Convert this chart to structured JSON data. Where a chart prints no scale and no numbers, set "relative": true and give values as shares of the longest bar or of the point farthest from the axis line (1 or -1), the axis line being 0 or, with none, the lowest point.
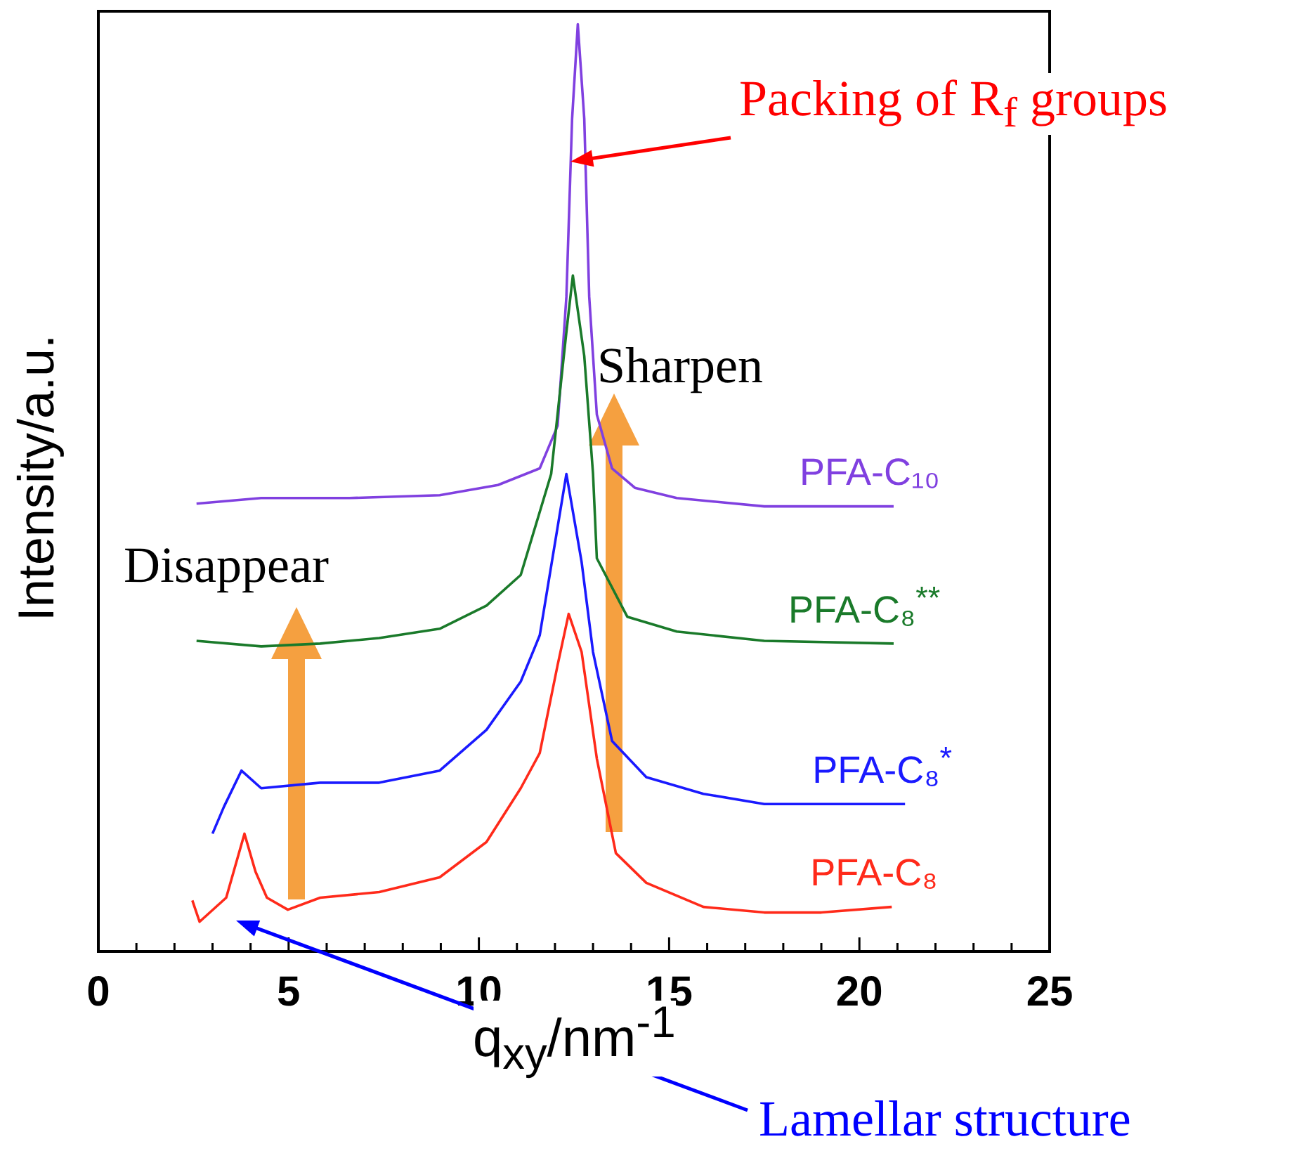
{
  "chart_data": {
    "type": "line",
    "relative": true,
    "xlabel": "q$_{xy}$/nm$^{-1}$",
    "ylabel": "Intensity/a.u.",
    "xlim": [
      0,
      25
    ],
    "xticks": [
      0,
      {
        "value": 1,
        "label": null
      },
      {
        "value": 2,
        "label": null
      },
      {
        "value": 3,
        "label": null
      },
      {
        "value": 4,
        "label": null
      },
      5,
      {
        "value": 6,
        "label": null
      },
      {
        "value": 7,
        "label": null
      },
      {
        "value": 8,
        "label": null
      },
      {
        "value": 9,
        "label": null
      },
      10,
      {
        "value": 11,
        "label": null
      },
      {
        "value": 12,
        "label": null
      },
      {
        "value": 13,
        "label": null
      },
      {
        "value": 14,
        "label": null
      },
      15,
      {
        "value": 16,
        "label": null
      },
      {
        "value": 17,
        "label": null
      },
      {
        "value": 18,
        "label": null
      },
      {
        "value": 19,
        "label": null
      },
      20,
      {
        "value": 21,
        "label": null
      },
      {
        "value": 22,
        "label": null
      },
      {
        "value": 23,
        "label": null
      },
      {
        "value": 24,
        "label": null
      },
      25
    ],
    "marker": "none",
    "line_style": "solid",
    "legend": false,
    "series": [
      {
        "name": "PFA-C₈",
        "color": "#ff2a1a",
        "x": [
          2.47,
          2.66,
          3.36,
          3.84,
          4.13,
          4.43,
          4.98,
          5.83,
          7.38,
          8.97,
          10.2,
          11.1,
          11.6,
          12.07,
          12.36,
          12.7,
          13.1,
          13.6,
          14.4,
          15.9,
          17.5,
          19.0,
          20.85
        ],
        "values": [
          0.055,
          0.032,
          0.058,
          0.127,
          0.086,
          0.058,
          0.045,
          0.058,
          0.064,
          0.08,
          0.118,
          0.176,
          0.214,
          0.309,
          0.364,
          0.323,
          0.208,
          0.106,
          0.074,
          0.048,
          0.042,
          0.042,
          0.048
        ]
      },
      {
        "name": "PFA-C₈$^{*}$",
        "color": "#1a1aff",
        "x": [
          3.0,
          3.3,
          3.76,
          4.28,
          5.83,
          7.38,
          8.97,
          10.2,
          11.1,
          11.6,
          12.3,
          12.7,
          13.0,
          13.5,
          14.4,
          15.9,
          17.5,
          19.0,
          21.2
        ],
        "values": [
          0.127,
          0.156,
          0.195,
          0.176,
          0.182,
          0.182,
          0.195,
          0.239,
          0.291,
          0.341,
          0.515,
          0.42,
          0.323,
          0.227,
          0.188,
          0.17,
          0.159,
          0.159,
          0.159
        ]
      },
      {
        "name": "PFA-C₈$^{**}$",
        "color": "#1a7a2a",
        "x": [
          2.58,
          4.28,
          5.83,
          7.38,
          8.97,
          10.2,
          11.1,
          11.9,
          12.3,
          12.47,
          12.77,
          13.0,
          13.1,
          13.9,
          15.2,
          17.5,
          20.9
        ],
        "values": [
          0.335,
          0.329,
          0.332,
          0.338,
          0.348,
          0.373,
          0.406,
          0.515,
          0.668,
          0.729,
          0.642,
          0.515,
          0.424,
          0.361,
          0.345,
          0.335,
          0.332
        ]
      },
      {
        "name": "PFA-C₁₀",
        "color": "#8040e0",
        "x": [
          2.58,
          4.28,
          6.6,
          8.97,
          10.5,
          11.6,
          12.07,
          12.3,
          12.45,
          12.6,
          12.77,
          12.9,
          13.1,
          13.5,
          14.1,
          15.2,
          17.5,
          20.9
        ],
        "values": [
          0.483,
          0.489,
          0.489,
          0.492,
          0.503,
          0.521,
          0.567,
          0.706,
          0.898,
          1.0,
          0.898,
          0.706,
          0.579,
          0.521,
          0.5,
          0.489,
          0.48,
          0.48
        ]
      }
    ],
    "annotations": [
      "Packing of R$_{f}$ groups",
      "Sharpen",
      "Disappear",
      "Lamellar structure"
    ]
  }
}
